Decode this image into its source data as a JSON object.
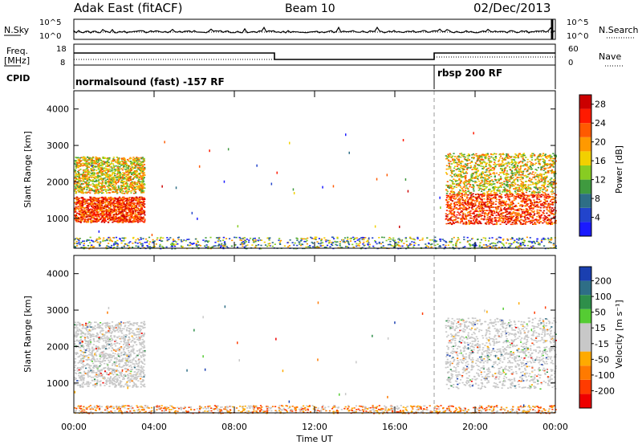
{
  "header": {
    "station": "Adak East (fitACF)",
    "beam": "Beam 10",
    "date": "02/Dec/2013"
  },
  "labels": {
    "nsky": "N.Sky",
    "nsearch": "N.Search",
    "freq_line1": "Freq.",
    "freq_line2": "[MHz]",
    "nave": "Nave",
    "cpid": "CPID",
    "cpid_left": "normalsound (fast) -157 RF",
    "cpid_right": "rbsp 200 RF",
    "nsky_ticks": [
      "10^5",
      "10^0"
    ],
    "nsearch_ticks": [
      "10^5",
      "10^0"
    ],
    "freq_ticks": [
      "18",
      "8"
    ],
    "nave_ticks": [
      "60",
      "0"
    ]
  },
  "colors": {
    "power": [
      "#1a1aff",
      "#2244cc",
      "#2e6e86",
      "#3f9a3f",
      "#88cc22",
      "#f2d000",
      "#ff9900",
      "#ff5a00",
      "#ff1a00",
      "#cc0000"
    ],
    "velocity": [
      "#ee0000",
      "#ff3b00",
      "#ff7a00",
      "#ffaa00",
      "#c8c8c8",
      "#c8c8c8",
      "#55cc33",
      "#2e8f4a",
      "#2e6e86",
      "#1a3fb0"
    ]
  },
  "chart_data": [
    {
      "type": "heatmap",
      "title": "",
      "xlabel": "",
      "ylabel": "Slant Range [km]",
      "xlim": [
        "00:00",
        "24:00"
      ],
      "ylim": [
        180,
        4500
      ],
      "y_ticks": [
        1000,
        2000,
        3000,
        4000
      ],
      "colorbar_label": "Power [dB]",
      "colorbar_ticks": [
        4,
        8,
        12,
        16,
        20,
        24,
        28
      ],
      "colorbar_range": [
        0,
        30
      ],
      "regions": [
        {
          "t_start": 0.0,
          "t_end": 3.5,
          "range_min": 900,
          "range_max": 1600,
          "level": "high"
        },
        {
          "t_start": 0.0,
          "t_end": 3.5,
          "range_min": 1700,
          "range_max": 2700,
          "level": "medium"
        },
        {
          "t_start": 18.5,
          "t_end": 24.0,
          "range_min": 850,
          "range_max": 1700,
          "level": "high"
        },
        {
          "t_start": 18.5,
          "t_end": 24.0,
          "range_min": 1700,
          "range_max": 2800,
          "level": "medium"
        },
        {
          "t_start": 0.0,
          "t_end": 24.0,
          "range_min": 180,
          "range_max": 500,
          "level": "low"
        }
      ]
    },
    {
      "type": "heatmap",
      "title": "",
      "xlabel": "Time UT",
      "ylabel": "Slant Range [km]",
      "xlim": [
        "00:00",
        "24:00"
      ],
      "ylim": [
        180,
        4500
      ],
      "x_ticks": [
        "00:00",
        "04:00",
        "08:00",
        "12:00",
        "16:00",
        "20:00",
        "00:00"
      ],
      "y_ticks": [
        1000,
        2000,
        3000,
        4000
      ],
      "colorbar_label": "Velocity [m s^-1]",
      "colorbar_ticks": [
        200,
        100,
        50,
        15,
        -15,
        -50,
        -100,
        -200
      ],
      "regions": [
        {
          "t_start": 0.0,
          "t_end": 3.5,
          "range_min": 900,
          "range_max": 2700,
          "level": "ground-scatter"
        },
        {
          "t_start": 18.5,
          "t_end": 24.0,
          "range_min": 850,
          "range_max": 2800,
          "level": "ground-scatter"
        },
        {
          "t_start": 0.0,
          "t_end": 24.0,
          "range_min": 180,
          "range_max": 400,
          "level": "negative"
        }
      ]
    }
  ],
  "time_axis": {
    "ticks": [
      "00:00",
      "04:00",
      "08:00",
      "12:00",
      "16:00",
      "20:00",
      "00:00"
    ],
    "label": "Time UT"
  },
  "power_axis_label": "Power [dB]",
  "velocity_axis_label": "Velocity [m s⁻¹]"
}
